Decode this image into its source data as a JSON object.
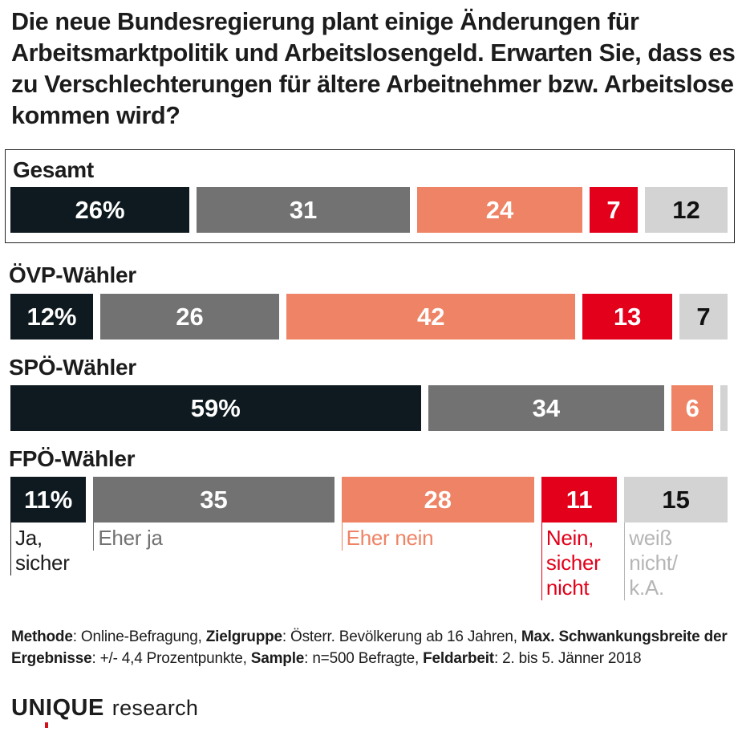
{
  "title": "Die neue Bundesregierung plant einige Änderungen für Arbeitsmarktpolitik und Arbeitslosengeld. Erwarten Sie, dass es zu Verschlechterungen für ältere Arbeitnehmer bzw. Arbeitslose kommen wird?",
  "colors": {
    "ja_sicher": "#0e1a1f",
    "eher_ja": "#727272",
    "eher_nein": "#ef8365",
    "nein_sicher_nicht": "#e2001a",
    "weiss_nicht": "#d3d3d3"
  },
  "chart_data": {
    "type": "bar",
    "stacked": true,
    "orientation": "horizontal",
    "categories": [
      "Gesamt",
      "ÖVP-Wähler",
      "SPÖ-Wähler",
      "FPÖ-Wähler"
    ],
    "series": [
      {
        "name": "Ja, sicher",
        "values": [
          26,
          12,
          59,
          11
        ],
        "labels": [
          "26%",
          "12%",
          "59%",
          "11%"
        ]
      },
      {
        "name": "Eher ja",
        "values": [
          31,
          26,
          34,
          35
        ],
        "labels": [
          "31",
          "26",
          "34",
          "35"
        ]
      },
      {
        "name": "Eher nein",
        "values": [
          24,
          42,
          6,
          28
        ],
        "labels": [
          "24",
          "42",
          "6",
          "28"
        ]
      },
      {
        "name": "Nein, sicher nicht",
        "values": [
          7,
          13,
          0,
          11
        ],
        "labels": [
          "7",
          "13",
          "",
          "11"
        ]
      },
      {
        "name": "weiß nicht/ k.A.",
        "values": [
          12,
          7,
          1,
          15
        ],
        "labels": [
          "12",
          "7",
          "",
          "15"
        ]
      }
    ],
    "legend_lines": [
      [
        "Ja,",
        "sicher"
      ],
      [
        "Eher ja"
      ],
      [
        "Eher nein"
      ],
      [
        "Nein,",
        "sicher",
        "nicht"
      ],
      [
        "weiß",
        "nicht/",
        "k.A."
      ]
    ]
  },
  "footnote": {
    "methode_label": "Methode",
    "methode_value": ": Online-Befragung, ",
    "zielgruppe_label": "Zielgruppe",
    "zielgruppe_value": ": Österr. Bevölkerung ab 16 Jahren, ",
    "schwankung_label": "Max. Schwankungsbreite der Ergebnisse",
    "schwankung_value": ": +/- 4,4 Prozentpunkte, ",
    "sample_label": "Sample",
    "sample_value": ": n=500 Befragte, ",
    "feldarbeit_label": "Feldarbeit",
    "feldarbeit_value": ": 2. bis 5. Jänner 2018"
  },
  "logo": {
    "main": "UNIQUE",
    "sub": "research"
  }
}
